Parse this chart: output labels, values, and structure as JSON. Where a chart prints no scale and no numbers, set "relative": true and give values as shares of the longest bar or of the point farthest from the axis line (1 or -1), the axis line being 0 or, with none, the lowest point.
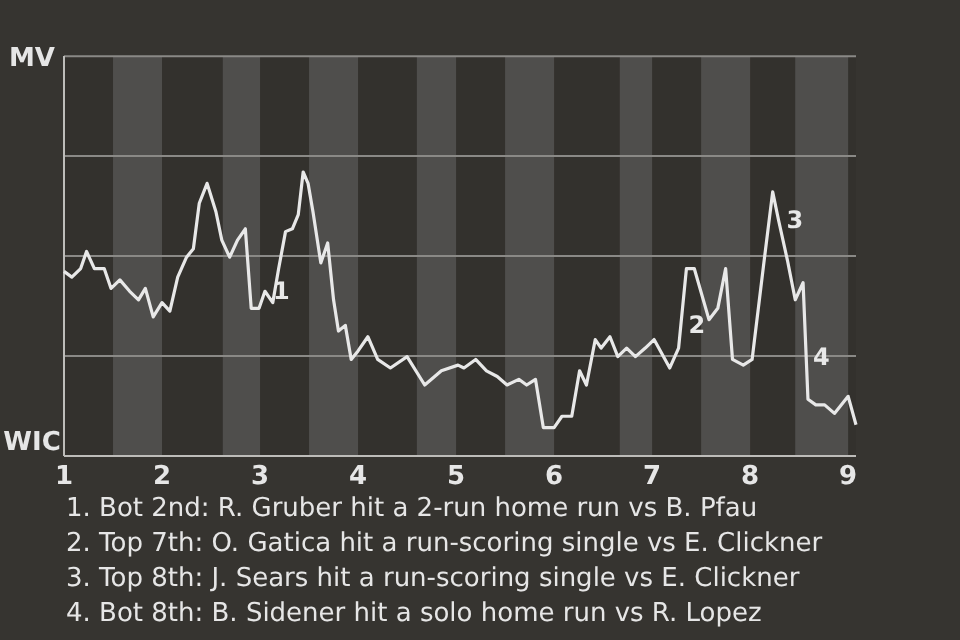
{
  "chart_data": {
    "type": "line",
    "relative": true,
    "xlim": [
      1,
      9.08
    ],
    "xticks": [
      1,
      2,
      3,
      4,
      5,
      6,
      7,
      8,
      9
    ],
    "ylabel": "MV",
    "marker": "none",
    "line_style": "solid",
    "ref_lines": [
      {
        "axis": "y",
        "value": 0.352,
        "color": "#8a8986"
      },
      {
        "axis": "y",
        "value": 0.704,
        "color": "#8a8986"
      },
      {
        "axis": "y",
        "value": 1.056,
        "color": "#8a8986"
      },
      {
        "axis": "y",
        "value": 1.408,
        "color": "#8a8986"
      }
    ],
    "bands": [
      {
        "axis": "x",
        "from": 1.5,
        "to": 2,
        "color": "#4f4e4c"
      },
      {
        "axis": "x",
        "from": 2.62,
        "to": 3,
        "color": "#4f4e4c"
      },
      {
        "axis": "x",
        "from": 3.5,
        "to": 4,
        "color": "#4f4e4c"
      },
      {
        "axis": "x",
        "from": 4.6,
        "to": 5,
        "color": "#4f4e4c"
      },
      {
        "axis": "x",
        "from": 5.5,
        "to": 6,
        "color": "#4f4e4c"
      },
      {
        "axis": "x",
        "from": 6.67,
        "to": 7,
        "color": "#4f4e4c"
      },
      {
        "axis": "x",
        "from": 7.5,
        "to": 8,
        "color": "#4f4e4c"
      },
      {
        "axis": "x",
        "from": 8.46,
        "to": 9,
        "color": "#4f4e4c"
      }
    ],
    "series": [
      {
        "color": "#e8e8e8",
        "x": [
          1,
          1.08,
          1.17,
          1.23,
          1.31,
          1.41,
          1.48,
          1.57,
          1.67,
          1.76,
          1.83,
          1.91,
          2,
          2.08,
          2.16,
          2.25,
          2.32,
          2.38,
          2.46,
          2.55,
          2.61,
          2.69,
          2.77,
          2.85,
          2.91,
          2.99,
          3.05,
          3.13,
          3.19,
          3.26,
          3.33,
          3.39,
          3.44,
          3.49,
          3.54,
          3.62,
          3.69,
          3.75,
          3.8,
          3.87,
          3.93,
          4,
          4.1,
          4.2,
          4.33,
          4.5,
          4.68,
          4.85,
          5.02,
          5.08,
          5.2,
          5.31,
          5.42,
          5.52,
          5.64,
          5.72,
          5.81,
          5.89,
          6,
          6.08,
          6.18,
          6.26,
          6.33,
          6.42,
          6.48,
          6.57,
          6.65,
          6.74,
          6.83,
          6.93,
          7.02,
          7.18,
          7.27,
          7.35,
          7.43,
          7.58,
          7.67,
          7.75,
          7.82,
          7.93,
          8.02,
          8.14,
          8.23,
          8.29,
          8.38,
          8.46,
          8.54,
          8.59,
          8.67,
          8.76,
          8.86,
          9,
          9.08
        ],
        "values": [
          0.65,
          0.63,
          0.66,
          0.72,
          0.66,
          0.66,
          0.59,
          0.62,
          0.58,
          0.55,
          0.59,
          0.49,
          0.54,
          0.51,
          0.63,
          0.7,
          0.73,
          0.89,
          0.96,
          0.86,
          0.76,
          0.7,
          0.76,
          0.8,
          0.52,
          0.52,
          0.58,
          0.54,
          0.66,
          0.79,
          0.8,
          0.85,
          1,
          0.96,
          0.86,
          0.68,
          0.75,
          0.55,
          0.44,
          0.46,
          0.34,
          0.37,
          0.42,
          0.34,
          0.31,
          0.35,
          0.25,
          0.3,
          0.32,
          0.31,
          0.34,
          0.3,
          0.28,
          0.25,
          0.27,
          0.25,
          0.27,
          0.1,
          0.1,
          0.14,
          0.14,
          0.3,
          0.25,
          0.41,
          0.38,
          0.42,
          0.35,
          0.38,
          0.35,
          0.38,
          0.41,
          0.31,
          0.38,
          0.66,
          0.66,
          0.48,
          0.52,
          0.66,
          0.34,
          0.32,
          0.34,
          0.68,
          0.93,
          0.83,
          0.69,
          0.55,
          0.61,
          0.2,
          0.18,
          0.18,
          0.15,
          0.21,
          0.11
        ]
      }
    ],
    "annotations": [
      "WIC",
      {
        "text": "1",
        "x": 3.05,
        "y": 0.58
      },
      {
        "text": "2",
        "x": 7.29,
        "y": 0.46
      },
      {
        "text": "3",
        "x": 8.29,
        "y": 0.83
      },
      {
        "text": "4",
        "x": 8.56,
        "y": 0.35
      },
      "1. Bot 2nd: R. Gruber hit a 2-run home run vs B. Pfau",
      "2. Top 7th: O. Gatica hit a run-scoring single vs E. Clickner",
      "3. Top 8th: J. Sears hit a run-scoring single vs E. Clickner",
      "4. Bot 8th: B. Sidener hit a solo home run vs R. Lopez"
    ]
  }
}
